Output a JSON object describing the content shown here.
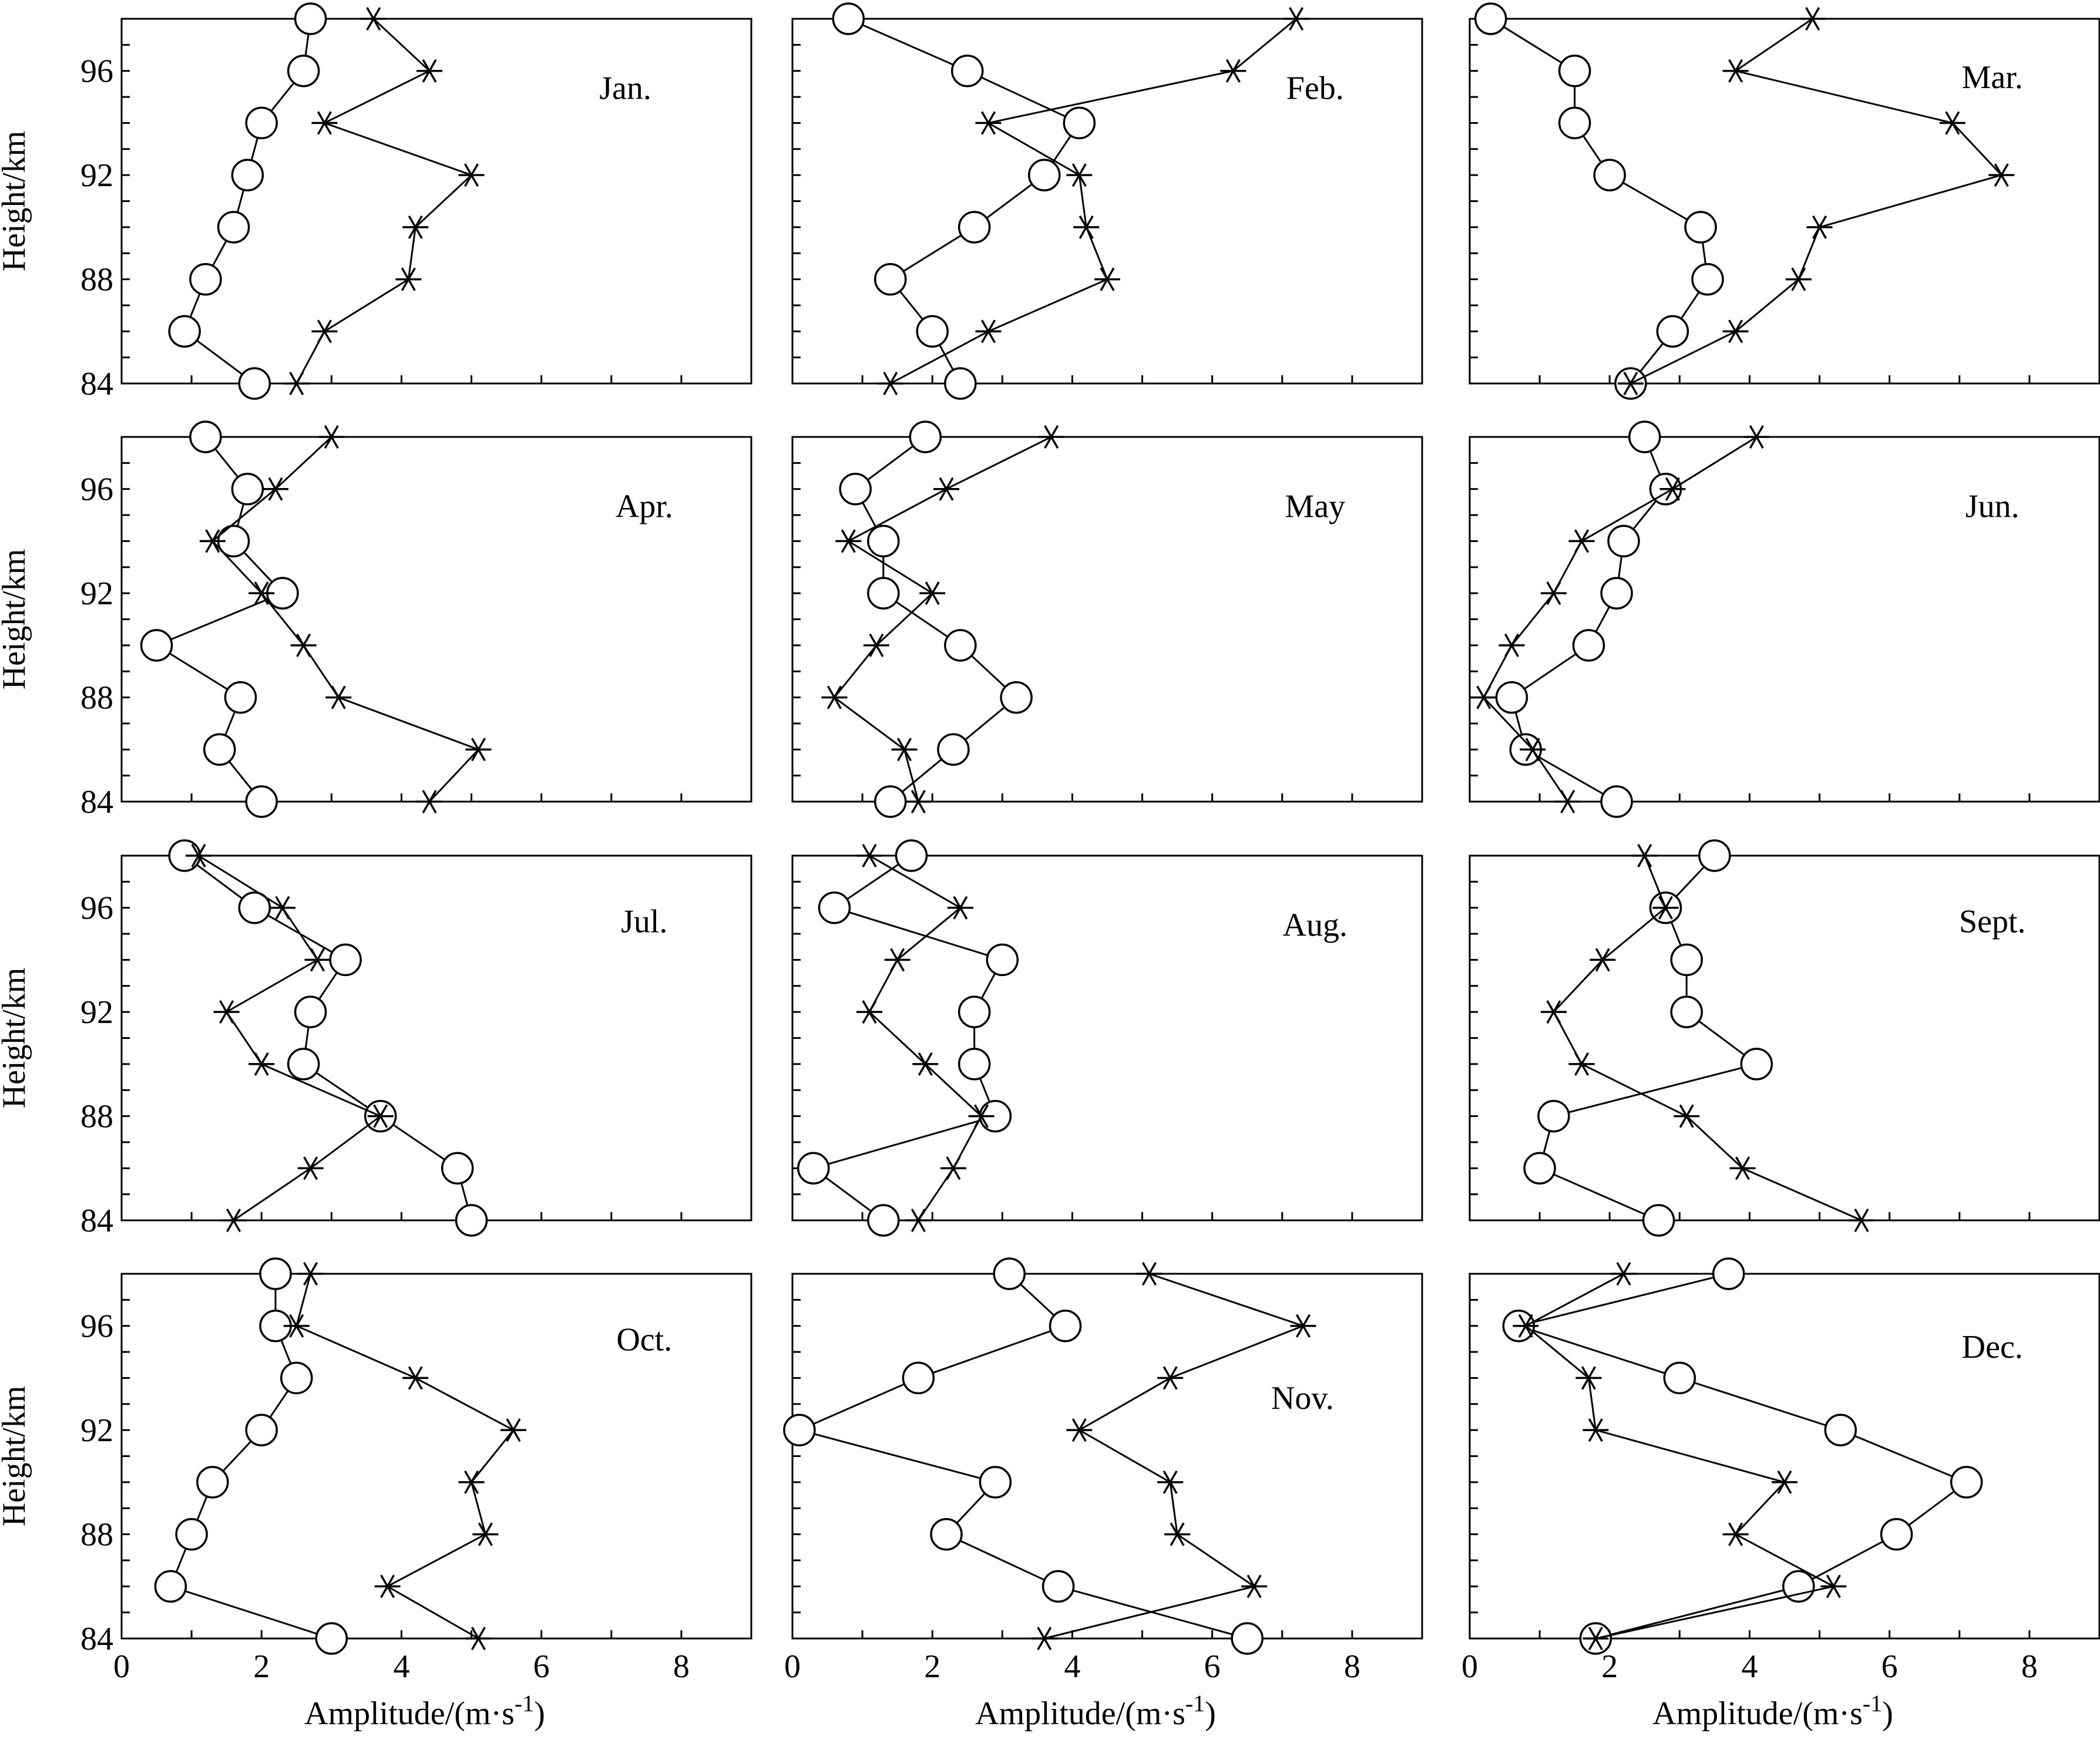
{
  "figure": {
    "y_label": "Height/km",
    "x_label_prefix": "Amplitude/(m·s",
    "x_label_sup": "-1",
    "x_label_suffix": ")",
    "x_ticks": [
      0,
      2,
      4,
      6,
      8
    ],
    "y_ticks": [
      84,
      88,
      92,
      96
    ]
  },
  "chart_data": [
    {
      "type": "line",
      "title": "Jan.",
      "xlim": [
        0,
        9
      ],
      "ylim": [
        84,
        98
      ],
      "heights": [
        84,
        86,
        88,
        90,
        92,
        94,
        96,
        98
      ],
      "series": [
        {
          "marker": "circle",
          "values": [
            1.9,
            0.9,
            1.2,
            1.6,
            1.8,
            2.0,
            2.6,
            2.7
          ]
        },
        {
          "marker": "star",
          "values": [
            2.5,
            2.9,
            4.1,
            4.2,
            5.0,
            2.9,
            4.4,
            3.6
          ]
        }
      ]
    },
    {
      "type": "line",
      "title": "Feb.",
      "xlim": [
        0,
        9
      ],
      "ylim": [
        84,
        98
      ],
      "heights": [
        84,
        86,
        88,
        90,
        92,
        94,
        96,
        98
      ],
      "series": [
        {
          "marker": "circle",
          "values": [
            2.4,
            2.0,
            1.4,
            2.6,
            3.6,
            4.1,
            2.5,
            0.8
          ]
        },
        {
          "marker": "star",
          "values": [
            1.4,
            2.8,
            4.5,
            4.2,
            4.1,
            2.8,
            6.3,
            7.2
          ]
        }
      ]
    },
    {
      "type": "line",
      "title": "Mar.",
      "xlim": [
        0,
        9
      ],
      "ylim": [
        84,
        98
      ],
      "heights": [
        84,
        86,
        88,
        90,
        92,
        94,
        96,
        98
      ],
      "series": [
        {
          "marker": "circle",
          "values": [
            2.3,
            2.9,
            3.4,
            3.3,
            2.0,
            1.5,
            1.5,
            0.3
          ]
        },
        {
          "marker": "star",
          "values": [
            2.3,
            3.8,
            4.7,
            5.0,
            7.6,
            6.9,
            3.8,
            4.9
          ]
        }
      ]
    },
    {
      "type": "line",
      "title": "Apr.",
      "xlim": [
        0,
        9
      ],
      "ylim": [
        84,
        98
      ],
      "heights": [
        84,
        86,
        88,
        90,
        92,
        94,
        96,
        98
      ],
      "series": [
        {
          "marker": "circle",
          "values": [
            2.0,
            1.4,
            1.7,
            0.5,
            2.3,
            1.6,
            1.8,
            1.2
          ]
        },
        {
          "marker": "star",
          "values": [
            4.4,
            5.1,
            3.1,
            2.6,
            2.0,
            1.3,
            2.2,
            3.0
          ]
        }
      ]
    },
    {
      "type": "line",
      "title": "May",
      "xlim": [
        0,
        9
      ],
      "ylim": [
        84,
        98
      ],
      "heights": [
        84,
        86,
        88,
        90,
        92,
        94,
        96,
        98
      ],
      "series": [
        {
          "marker": "circle",
          "values": [
            1.4,
            2.3,
            3.2,
            2.4,
            1.3,
            1.3,
            0.9,
            1.9
          ]
        },
        {
          "marker": "star",
          "values": [
            1.8,
            1.6,
            0.6,
            1.2,
            2.0,
            0.8,
            2.2,
            3.7
          ]
        }
      ]
    },
    {
      "type": "line",
      "title": "Jun.",
      "xlim": [
        0,
        9
      ],
      "ylim": [
        84,
        98
      ],
      "heights": [
        84,
        86,
        88,
        90,
        92,
        94,
        96,
        98
      ],
      "series": [
        {
          "marker": "circle",
          "values": [
            2.1,
            0.8,
            0.6,
            1.7,
            2.1,
            2.2,
            2.8,
            2.5
          ]
        },
        {
          "marker": "star",
          "values": [
            1.4,
            0.9,
            0.2,
            0.6,
            1.2,
            1.6,
            2.9,
            4.1
          ]
        }
      ]
    },
    {
      "type": "line",
      "title": "Jul.",
      "xlim": [
        0,
        9
      ],
      "ylim": [
        84,
        98
      ],
      "heights": [
        84,
        86,
        88,
        90,
        92,
        94,
        96,
        98
      ],
      "series": [
        {
          "marker": "circle",
          "values": [
            5.0,
            4.8,
            3.7,
            2.6,
            2.7,
            3.2,
            1.9,
            0.9
          ]
        },
        {
          "marker": "star",
          "values": [
            1.6,
            2.7,
            3.7,
            2.0,
            1.5,
            2.8,
            2.3,
            1.1
          ]
        }
      ]
    },
    {
      "type": "line",
      "title": "Aug.",
      "xlim": [
        0,
        9
      ],
      "ylim": [
        84,
        98
      ],
      "heights": [
        84,
        86,
        88,
        90,
        92,
        94,
        96,
        98
      ],
      "series": [
        {
          "marker": "circle",
          "values": [
            1.3,
            0.3,
            2.9,
            2.6,
            2.6,
            3.0,
            0.6,
            1.7
          ]
        },
        {
          "marker": "star",
          "values": [
            1.8,
            2.3,
            2.7,
            1.9,
            1.1,
            1.5,
            2.4,
            1.1
          ]
        }
      ]
    },
    {
      "type": "line",
      "title": "Sept.",
      "xlim": [
        0,
        9
      ],
      "ylim": [
        84,
        98
      ],
      "heights": [
        84,
        86,
        88,
        90,
        92,
        94,
        96,
        98
      ],
      "series": [
        {
          "marker": "circle",
          "values": [
            2.7,
            1.0,
            1.2,
            4.1,
            3.1,
            3.1,
            2.8,
            3.5
          ]
        },
        {
          "marker": "star",
          "values": [
            5.6,
            3.9,
            3.1,
            1.6,
            1.2,
            1.9,
            2.8,
            2.5
          ]
        }
      ]
    },
    {
      "type": "line",
      "title": "Oct.",
      "xlim": [
        0,
        9
      ],
      "ylim": [
        84,
        98
      ],
      "heights": [
        84,
        86,
        88,
        90,
        92,
        94,
        96,
        98
      ],
      "series": [
        {
          "marker": "circle",
          "values": [
            3.0,
            0.7,
            1.0,
            1.3,
            2.0,
            2.5,
            2.2,
            2.2
          ]
        },
        {
          "marker": "star",
          "values": [
            5.1,
            3.8,
            5.2,
            5.0,
            5.6,
            4.2,
            2.5,
            2.7
          ]
        }
      ]
    },
    {
      "type": "line",
      "title": "Nov.",
      "xlim": [
        0,
        9
      ],
      "ylim": [
        84,
        98
      ],
      "heights": [
        84,
        86,
        88,
        90,
        92,
        94,
        96,
        98
      ],
      "series": [
        {
          "marker": "circle",
          "values": [
            6.5,
            3.8,
            2.2,
            2.9,
            0.1,
            1.8,
            3.9,
            3.1
          ]
        },
        {
          "marker": "star",
          "values": [
            3.6,
            6.6,
            5.5,
            5.4,
            4.1,
            5.4,
            7.3,
            5.1
          ]
        }
      ]
    },
    {
      "type": "line",
      "title": "Dec.",
      "xlim": [
        0,
        9
      ],
      "ylim": [
        84,
        98
      ],
      "heights": [
        84,
        86,
        88,
        90,
        92,
        94,
        96,
        98
      ],
      "series": [
        {
          "marker": "circle",
          "values": [
            1.8,
            4.7,
            6.1,
            7.1,
            5.3,
            3.0,
            0.7,
            3.7
          ]
        },
        {
          "marker": "star",
          "values": [
            1.8,
            5.2,
            3.8,
            4.5,
            1.8,
            1.7,
            0.8,
            2.2
          ]
        }
      ]
    }
  ]
}
